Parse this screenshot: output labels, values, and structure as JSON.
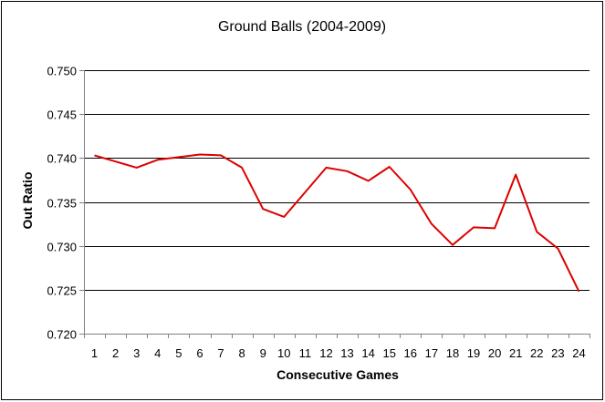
{
  "chart_data": {
    "type": "line",
    "title": "Ground Balls (2004-2009)",
    "xlabel": "Consecutive Games",
    "ylabel": "Out Ratio",
    "categories": [
      "1",
      "2",
      "3",
      "4",
      "5",
      "6",
      "7",
      "8",
      "9",
      "10",
      "11",
      "12",
      "13",
      "14",
      "15",
      "16",
      "17",
      "18",
      "19",
      "20",
      "21",
      "22",
      "23",
      "24"
    ],
    "series": [
      {
        "values": [
          0.7403,
          0.7396,
          0.7389,
          0.7398,
          0.7401,
          0.7404,
          0.7403,
          0.7389,
          0.7342,
          0.7333,
          0.7361,
          0.7389,
          0.7385,
          0.7374,
          0.739,
          0.7364,
          0.7325,
          0.7301,
          0.7321,
          0.732,
          0.7381,
          0.7316,
          0.7297,
          0.7248
        ],
        "color": "#dd0000"
      }
    ],
    "ylim": [
      0.72,
      0.75
    ],
    "yticks": [
      "0.720",
      "0.725",
      "0.730",
      "0.735",
      "0.740",
      "0.745",
      "0.750"
    ],
    "grid": true,
    "legend": "none"
  }
}
